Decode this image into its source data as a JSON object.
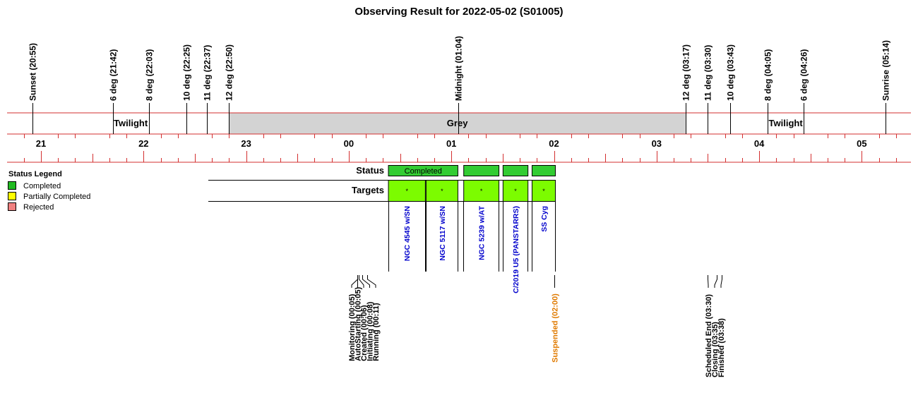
{
  "chart_data": {
    "type": "timeline",
    "title": "Observing Result for 2022-05-02 (S01005)",
    "start_hour": 20.7,
    "end_hour": 29.5,
    "twilight_events": [
      {
        "label": "Sunset (20:55)",
        "hour": 20.917
      },
      {
        "label": "6 deg (21:42)",
        "hour": 21.7
      },
      {
        "label": "8 deg (22:03)",
        "hour": 22.05
      },
      {
        "label": "10 deg (22:25)",
        "hour": 22.417
      },
      {
        "label": "11 deg (22:37)",
        "hour": 22.617
      },
      {
        "label": "12 deg (22:50)",
        "hour": 22.833
      },
      {
        "label": "Midnight (01:04)",
        "hour": 25.067
      },
      {
        "label": "12 deg (03:17)",
        "hour": 27.283
      },
      {
        "label": "11 deg (03:30)",
        "hour": 27.5
      },
      {
        "label": "10 deg (03:43)",
        "hour": 27.717
      },
      {
        "label": "8 deg (04:05)",
        "hour": 28.083
      },
      {
        "label": "6 deg (04:26)",
        "hour": 28.433
      },
      {
        "label": "Sunrise (05:14)",
        "hour": 29.233
      }
    ],
    "sky_bands": [
      {
        "label": "Twilight",
        "start": 20.917,
        "end": 22.833,
        "color": "#ffffff"
      },
      {
        "label": "Grey",
        "start": 22.833,
        "end": 27.283,
        "color": "#d3d3d3"
      },
      {
        "label": "Twilight",
        "start": 27.283,
        "end": 29.233,
        "color": "#ffffff"
      }
    ],
    "hour_ticks": [
      {
        "label": "21",
        "hour": 21
      },
      {
        "label": "22",
        "hour": 22
      },
      {
        "label": "23",
        "hour": 23
      },
      {
        "label": "00",
        "hour": 24
      },
      {
        "label": "01",
        "hour": 25
      },
      {
        "label": "02",
        "hour": 26
      },
      {
        "label": "03",
        "hour": 27
      },
      {
        "label": "04",
        "hour": 28
      },
      {
        "label": "05",
        "hour": 29
      }
    ],
    "status_row_label": "Status",
    "targets_row_label": "Targets",
    "status_blocks": [
      {
        "start": 24.383,
        "end": 25.067,
        "label": "Completed",
        "status": "Completed"
      },
      {
        "start": 25.117,
        "end": 25.467,
        "label": "",
        "status": "Completed"
      },
      {
        "start": 25.5,
        "end": 25.75,
        "label": "",
        "status": "Completed"
      },
      {
        "start": 25.783,
        "end": 26.017,
        "label": "",
        "status": "Completed"
      }
    ],
    "targets": [
      {
        "name": "NGC 4545 w/SN",
        "start": 24.383,
        "end": 24.75,
        "marker": "*"
      },
      {
        "name": "NGC 5117 w/SN",
        "start": 24.75,
        "end": 25.067,
        "marker": "*"
      },
      {
        "name": "NGC 5239 w/AT",
        "start": 25.117,
        "end": 25.467,
        "marker": "*"
      },
      {
        "name": "C/2019 U5 (PANSTARRS)",
        "start": 25.5,
        "end": 25.75,
        "marker": "*"
      },
      {
        "name": "SS Cyg",
        "start": 25.783,
        "end": 26.017,
        "marker": "*"
      }
    ],
    "events_early": [
      {
        "label": "Monitoring (00:05)",
        "hour": 24.083
      },
      {
        "label": "AutoStarting (00:05)",
        "hour": 24.083
      },
      {
        "label": "Created (00:06)",
        "hour": 24.1
      },
      {
        "label": "Initiating (00:08)",
        "hour": 24.133
      },
      {
        "label": "Running (00:11)",
        "hour": 24.183
      }
    ],
    "event_suspended": {
      "label": "Suspended (02:00)",
      "hour": 26.0
    },
    "events_late": [
      {
        "label": "Scheduled End (03:30)",
        "hour": 27.5
      },
      {
        "label": "Closing (03:35)",
        "hour": 27.583
      },
      {
        "label": "Finished (03:38)",
        "hour": 27.633
      }
    ],
    "legend": {
      "title": "Status Legend",
      "items": [
        {
          "label": "Completed",
          "color": "#22bb22"
        },
        {
          "label": "Partially Completed",
          "color": "#ffff00"
        },
        {
          "label": "Rejected",
          "color": "#f08080"
        }
      ]
    },
    "colors": {
      "rule": "#d32f2f",
      "grey_band": "#d3d3d3",
      "status_completed": "#33cc33",
      "target_fill": "#7cfc00",
      "target_text": "#0000cc",
      "suspended_text": "#e07a00"
    }
  }
}
